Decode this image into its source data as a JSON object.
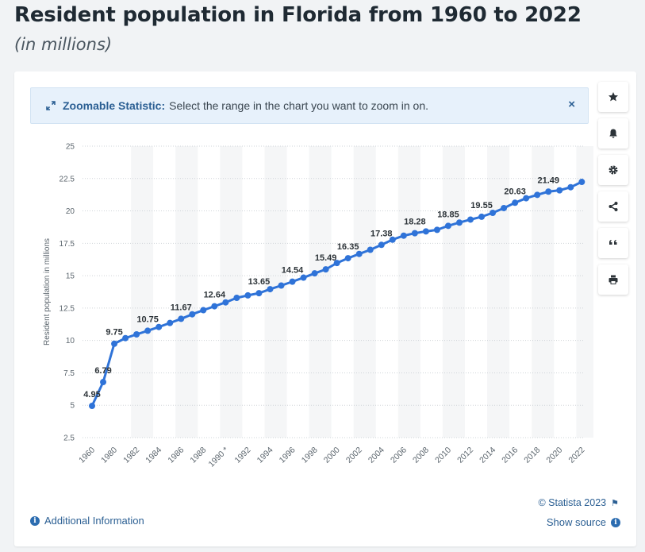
{
  "title": "Resident population in Florida from 1960 to 2022",
  "subtitle": "(in millions)",
  "zoom_banner": {
    "strong": "Zoomable Statistic:",
    "text": "Select the range in the chart you want to zoom in on.",
    "close": "×"
  },
  "toolbar": {
    "icons": [
      "star-icon",
      "bell-icon",
      "gear-icon",
      "share-icon",
      "quote-icon",
      "print-icon"
    ]
  },
  "footer": {
    "additional_info": "Additional Information",
    "copyright": "© Statista 2023",
    "show_source": "Show source"
  },
  "colors": {
    "line": "#2f73d8",
    "banner_bg": "#e7f1fb",
    "link": "#2b5f93"
  },
  "chart_data": {
    "type": "line",
    "title": "Resident population in Florida from 1960 to 2022",
    "subtitle": "(in millions)",
    "ylabel": "Resident population in millions",
    "xlabel": "",
    "ylim": [
      2.5,
      25
    ],
    "yticks": [
      2.5,
      5,
      7.5,
      10,
      12.5,
      15,
      17.5,
      20,
      22.5,
      25
    ],
    "x_tick_labels": [
      "1960",
      "1980",
      "1982",
      "1984",
      "1986",
      "1988",
      "1990 *",
      "1992",
      "1994",
      "1996",
      "1998",
      "2000",
      "2002",
      "2004",
      "2006",
      "2008",
      "2010",
      "2012",
      "2014",
      "2016",
      "2018",
      "2020",
      "2022"
    ],
    "categories": [
      "1960",
      "1970",
      "1980",
      "1981",
      "1982",
      "1983",
      "1984",
      "1985",
      "1986",
      "1987",
      "1988",
      "1989",
      "1990",
      "1991",
      "1992",
      "1993",
      "1994",
      "1995",
      "1996",
      "1997",
      "1998",
      "1999",
      "2000",
      "2001",
      "2002",
      "2003",
      "2004",
      "2005",
      "2006",
      "2007",
      "2008",
      "2009",
      "2010",
      "2011",
      "2012",
      "2013",
      "2014",
      "2015",
      "2016",
      "2017",
      "2018",
      "2019",
      "2020",
      "2021",
      "2022"
    ],
    "values": [
      4.95,
      6.79,
      9.75,
      10.18,
      10.47,
      10.75,
      11.04,
      11.35,
      11.67,
      12.02,
      12.34,
      12.64,
      12.94,
      13.29,
      13.48,
      13.65,
      13.96,
      14.24,
      14.54,
      14.85,
      15.18,
      15.49,
      15.98,
      16.35,
      16.68,
      17.0,
      17.38,
      17.78,
      18.09,
      18.28,
      18.42,
      18.54,
      18.85,
      19.1,
      19.33,
      19.55,
      19.85,
      20.22,
      20.63,
      20.98,
      21.24,
      21.49,
      21.59,
      21.83,
      22.24
    ],
    "data_labels": [
      {
        "category": "1960",
        "label": "4.95"
      },
      {
        "category": "1970",
        "label": "6.79"
      },
      {
        "category": "1980",
        "label": "9.75"
      },
      {
        "category": "1983",
        "label": "10.75"
      },
      {
        "category": "1986",
        "label": "11.67"
      },
      {
        "category": "1989",
        "label": "12.64"
      },
      {
        "category": "1993",
        "label": "13.65"
      },
      {
        "category": "1996",
        "label": "14.54"
      },
      {
        "category": "1999",
        "label": "15.49"
      },
      {
        "category": "2001",
        "label": "16.35"
      },
      {
        "category": "2004",
        "label": "17.38"
      },
      {
        "category": "2007",
        "label": "18.28"
      },
      {
        "category": "2010",
        "label": "18.85"
      },
      {
        "category": "2013",
        "label": "19.55"
      },
      {
        "category": "2016",
        "label": "20.63"
      },
      {
        "category": "2019",
        "label": "21.49"
      }
    ],
    "grid": true,
    "legend": "none"
  }
}
